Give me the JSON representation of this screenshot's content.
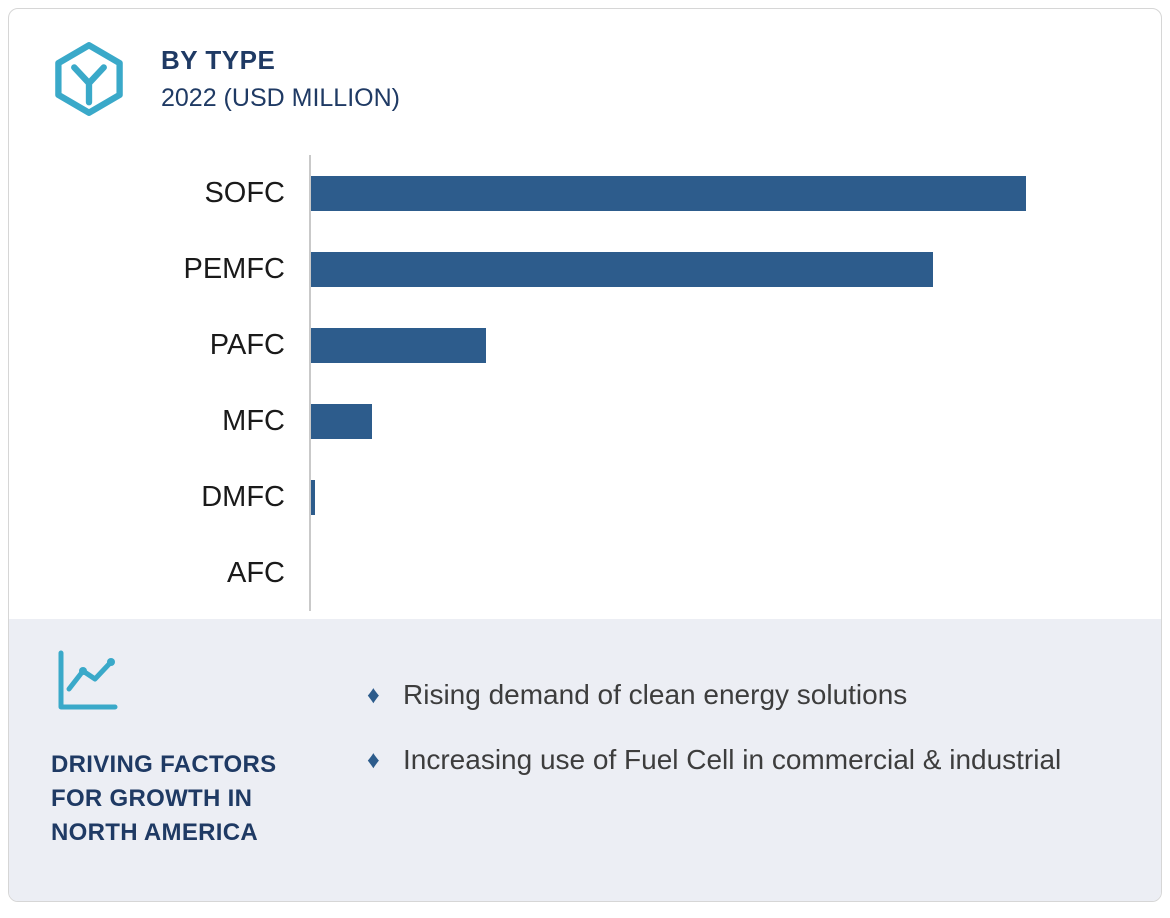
{
  "header": {
    "title": "BY TYPE",
    "subtitle": "2022 (USD MILLION)",
    "logo_icon": "hexagon-y-icon"
  },
  "chart_data": {
    "type": "bar",
    "orientation": "horizontal",
    "title": "BY TYPE",
    "subtitle": "2022 (USD MILLION)",
    "categories": [
      "SOFC",
      "PEMFC",
      "PAFC",
      "MFC",
      "DMFC",
      "AFC"
    ],
    "values": [
      100,
      87,
      24.5,
      8.5,
      0.5,
      0
    ],
    "value_note": "relative lengths (% of largest bar); absolute USD values are not labeled in the image",
    "xlim": [
      0,
      113
    ],
    "bar_color": "#2d5c8c",
    "axis_color": "#c9c9c9",
    "grid": false,
    "legend": false,
    "value_labels": false
  },
  "footer": {
    "icon": "line-chart-icon",
    "heading": "DRIVING FACTORS FOR GROWTH IN NORTH AMERICA",
    "bullet_marker": "♦",
    "bullets": [
      "Rising demand of clean energy solutions",
      "Increasing use of Fuel Cell in commercial & industrial"
    ]
  },
  "colors": {
    "accent_teal": "#3aa9c9",
    "navy": "#1f3a64",
    "bar_blue": "#2d5c8c",
    "footer_bg": "#eceef4",
    "text_dark": "#3d3d3d",
    "card_border": "#d6d6d6"
  }
}
